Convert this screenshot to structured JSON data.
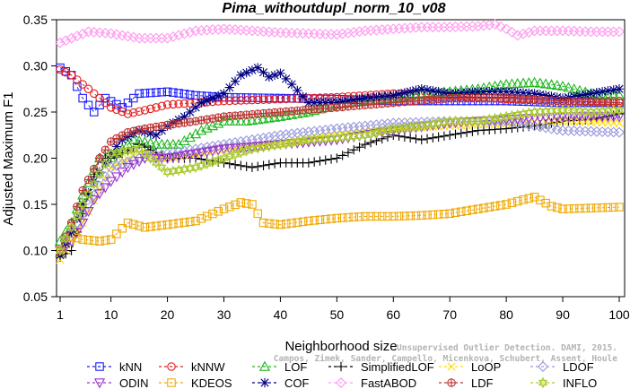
{
  "chart_data": {
    "type": "line",
    "title": "Pima_withoutdupl_norm_10_v08",
    "xlabel": "Neighborhood size",
    "ylabel": "Adjusted Maximum F1",
    "xlim": [
      1,
      100
    ],
    "ylim": [
      0.05,
      0.35
    ],
    "x_ticks": [
      1,
      10,
      20,
      30,
      40,
      50,
      60,
      70,
      80,
      90,
      100
    ],
    "y_ticks": [
      "0.05",
      "0.10",
      "0.15",
      "0.20",
      "0.25",
      "0.30",
      "0.35"
    ],
    "grid": false,
    "legend_position": "bottom",
    "credit": [
      "Campos, Zimek, Sander, Campello, Micenkova, Schubert, Assent, Houle",
      "Unsupervised Outlier Detection. DAMI, 2015."
    ],
    "series": [
      {
        "name": "kNN",
        "color": "#1a1aff",
        "marker": "square",
        "points": [
          [
            1,
            0.298
          ],
          [
            3,
            0.29
          ],
          [
            5,
            0.265
          ],
          [
            7,
            0.25
          ],
          [
            9,
            0.265
          ],
          [
            12,
            0.255
          ],
          [
            15,
            0.27
          ],
          [
            20,
            0.272
          ],
          [
            25,
            0.268
          ],
          [
            30,
            0.266
          ],
          [
            40,
            0.265
          ],
          [
            50,
            0.264
          ],
          [
            60,
            0.262
          ],
          [
            70,
            0.262
          ],
          [
            80,
            0.262
          ],
          [
            90,
            0.26
          ],
          [
            100,
            0.26
          ]
        ]
      },
      {
        "name": "kNNW",
        "color": "#e41a1c",
        "marker": "circle",
        "points": [
          [
            1,
            0.296
          ],
          [
            3,
            0.29
          ],
          [
            5,
            0.28
          ],
          [
            8,
            0.265
          ],
          [
            10,
            0.255
          ],
          [
            13,
            0.248
          ],
          [
            16,
            0.252
          ],
          [
            20,
            0.258
          ],
          [
            25,
            0.26
          ],
          [
            30,
            0.262
          ],
          [
            40,
            0.264
          ],
          [
            50,
            0.266
          ],
          [
            60,
            0.27
          ],
          [
            70,
            0.268
          ],
          [
            80,
            0.264
          ],
          [
            90,
            0.262
          ],
          [
            100,
            0.262
          ]
        ]
      },
      {
        "name": "LOF",
        "color": "#1db81d",
        "marker": "triangle-up",
        "points": [
          [
            1,
            0.11
          ],
          [
            3,
            0.13
          ],
          [
            5,
            0.16
          ],
          [
            8,
            0.2
          ],
          [
            10,
            0.2
          ],
          [
            14,
            0.22
          ],
          [
            18,
            0.215
          ],
          [
            22,
            0.215
          ],
          [
            26,
            0.23
          ],
          [
            30,
            0.24
          ],
          [
            34,
            0.24
          ],
          [
            40,
            0.245
          ],
          [
            45,
            0.25
          ],
          [
            50,
            0.258
          ],
          [
            55,
            0.262
          ],
          [
            60,
            0.265
          ],
          [
            65,
            0.27
          ],
          [
            70,
            0.272
          ],
          [
            75,
            0.275
          ],
          [
            80,
            0.28
          ],
          [
            85,
            0.282
          ],
          [
            90,
            0.278
          ],
          [
            95,
            0.27
          ],
          [
            100,
            0.268
          ]
        ]
      },
      {
        "name": "SimplifiedLOF",
        "color": "#000000",
        "marker": "plus",
        "points": [
          [
            1,
            0.093
          ],
          [
            3,
            0.1
          ],
          [
            5,
            0.14
          ],
          [
            8,
            0.2
          ],
          [
            10,
            0.2
          ],
          [
            12,
            0.205
          ],
          [
            15,
            0.215
          ],
          [
            20,
            0.2
          ],
          [
            25,
            0.2
          ],
          [
            30,
            0.195
          ],
          [
            35,
            0.19
          ],
          [
            40,
            0.195
          ],
          [
            45,
            0.195
          ],
          [
            50,
            0.2
          ],
          [
            55,
            0.215
          ],
          [
            60,
            0.225
          ],
          [
            65,
            0.22
          ],
          [
            70,
            0.225
          ],
          [
            75,
            0.23
          ],
          [
            80,
            0.232
          ],
          [
            85,
            0.235
          ],
          [
            90,
            0.24
          ],
          [
            95,
            0.242
          ],
          [
            100,
            0.248
          ]
        ]
      },
      {
        "name": "LoOP",
        "color": "#ffdd00",
        "marker": "cross",
        "points": [
          [
            1,
            0.09
          ],
          [
            5,
            0.13
          ],
          [
            10,
            0.19
          ],
          [
            15,
            0.205
          ],
          [
            20,
            0.2
          ],
          [
            25,
            0.205
          ],
          [
            30,
            0.21
          ],
          [
            40,
            0.215
          ],
          [
            50,
            0.225
          ],
          [
            60,
            0.232
          ],
          [
            70,
            0.235
          ],
          [
            80,
            0.238
          ],
          [
            90,
            0.24
          ],
          [
            100,
            0.238
          ]
        ]
      },
      {
        "name": "LDOF",
        "color": "#9999dd",
        "marker": "diamond",
        "points": [
          [
            1,
            0.1
          ],
          [
            5,
            0.14
          ],
          [
            10,
            0.19
          ],
          [
            15,
            0.2
          ],
          [
            20,
            0.205
          ],
          [
            30,
            0.215
          ],
          [
            40,
            0.225
          ],
          [
            50,
            0.232
          ],
          [
            60,
            0.238
          ],
          [
            70,
            0.24
          ],
          [
            80,
            0.24
          ],
          [
            85,
            0.235
          ],
          [
            90,
            0.23
          ],
          [
            100,
            0.228
          ]
        ]
      },
      {
        "name": "ODIN",
        "color": "#9933cc",
        "marker": "triangle-down",
        "points": [
          [
            1,
            0.1
          ],
          [
            3,
            0.11
          ],
          [
            5,
            0.13
          ],
          [
            7,
            0.155
          ],
          [
            10,
            0.175
          ],
          [
            13,
            0.19
          ],
          [
            16,
            0.2
          ],
          [
            20,
            0.2
          ],
          [
            25,
            0.205
          ],
          [
            30,
            0.21
          ],
          [
            40,
            0.215
          ],
          [
            50,
            0.22
          ],
          [
            60,
            0.23
          ],
          [
            70,
            0.238
          ],
          [
            80,
            0.242
          ],
          [
            90,
            0.245
          ],
          [
            100,
            0.245
          ]
        ]
      },
      {
        "name": "KDEOS",
        "color": "#f0a800",
        "marker": "square",
        "points": [
          [
            1,
            0.1
          ],
          [
            3,
            0.115
          ],
          [
            5,
            0.112
          ],
          [
            8,
            0.11
          ],
          [
            10,
            0.112
          ],
          [
            13,
            0.13
          ],
          [
            16,
            0.125
          ],
          [
            20,
            0.128
          ],
          [
            25,
            0.132
          ],
          [
            30,
            0.145
          ],
          [
            33,
            0.152
          ],
          [
            35,
            0.15
          ],
          [
            37,
            0.13
          ],
          [
            40,
            0.128
          ],
          [
            45,
            0.132
          ],
          [
            50,
            0.135
          ],
          [
            55,
            0.137
          ],
          [
            60,
            0.137
          ],
          [
            65,
            0.138
          ],
          [
            70,
            0.14
          ],
          [
            75,
            0.145
          ],
          [
            80,
            0.15
          ],
          [
            83,
            0.155
          ],
          [
            85,
            0.158
          ],
          [
            88,
            0.148
          ],
          [
            90,
            0.145
          ],
          [
            95,
            0.146
          ],
          [
            100,
            0.147
          ]
        ]
      },
      {
        "name": "COF",
        "color": "#000080",
        "marker": "star",
        "points": [
          [
            1,
            0.095
          ],
          [
            3,
            0.12
          ],
          [
            5,
            0.15
          ],
          [
            7,
            0.175
          ],
          [
            10,
            0.205
          ],
          [
            12,
            0.22
          ],
          [
            15,
            0.23
          ],
          [
            18,
            0.225
          ],
          [
            20,
            0.235
          ],
          [
            23,
            0.245
          ],
          [
            26,
            0.26
          ],
          [
            30,
            0.27
          ],
          [
            33,
            0.29
          ],
          [
            36,
            0.298
          ],
          [
            38,
            0.288
          ],
          [
            40,
            0.292
          ],
          [
            42,
            0.28
          ],
          [
            45,
            0.26
          ],
          [
            50,
            0.26
          ],
          [
            55,
            0.265
          ],
          [
            60,
            0.268
          ],
          [
            65,
            0.275
          ],
          [
            70,
            0.27
          ],
          [
            75,
            0.272
          ],
          [
            80,
            0.272
          ],
          [
            85,
            0.27
          ],
          [
            90,
            0.265
          ],
          [
            95,
            0.27
          ],
          [
            100,
            0.275
          ]
        ]
      },
      {
        "name": "FastABOD",
        "color": "#ff99ee",
        "marker": "diamond",
        "points": [
          [
            1,
            0.325
          ],
          [
            3,
            0.33
          ],
          [
            6,
            0.337
          ],
          [
            10,
            0.335
          ],
          [
            15,
            0.33
          ],
          [
            20,
            0.33
          ],
          [
            25,
            0.338
          ],
          [
            30,
            0.34
          ],
          [
            35,
            0.338
          ],
          [
            40,
            0.336
          ],
          [
            45,
            0.335
          ],
          [
            50,
            0.334
          ],
          [
            55,
            0.338
          ],
          [
            60,
            0.34
          ],
          [
            65,
            0.342
          ],
          [
            70,
            0.342
          ],
          [
            75,
            0.343
          ],
          [
            78,
            0.345
          ],
          [
            80,
            0.34
          ],
          [
            82,
            0.333
          ],
          [
            85,
            0.338
          ],
          [
            90,
            0.338
          ],
          [
            95,
            0.337
          ],
          [
            100,
            0.337
          ]
        ]
      },
      {
        "name": "LDF",
        "color": "#bb3333",
        "marker": "circle-plus",
        "points": [
          [
            1,
            0.1
          ],
          [
            3,
            0.13
          ],
          [
            5,
            0.165
          ],
          [
            8,
            0.2
          ],
          [
            10,
            0.218
          ],
          [
            13,
            0.228
          ],
          [
            16,
            0.232
          ],
          [
            20,
            0.236
          ],
          [
            25,
            0.24
          ],
          [
            30,
            0.245
          ],
          [
            40,
            0.25
          ],
          [
            50,
            0.255
          ],
          [
            60,
            0.26
          ],
          [
            70,
            0.265
          ],
          [
            80,
            0.265
          ],
          [
            90,
            0.262
          ],
          [
            100,
            0.26
          ]
        ]
      },
      {
        "name": "INFLO",
        "color": "#aacc33",
        "marker": "star6",
        "points": [
          [
            1,
            0.1
          ],
          [
            5,
            0.15
          ],
          [
            10,
            0.205
          ],
          [
            15,
            0.21
          ],
          [
            20,
            0.185
          ],
          [
            25,
            0.19
          ],
          [
            30,
            0.2
          ],
          [
            35,
            0.21
          ],
          [
            40,
            0.215
          ],
          [
            45,
            0.22
          ],
          [
            50,
            0.222
          ],
          [
            55,
            0.225
          ],
          [
            60,
            0.232
          ],
          [
            65,
            0.235
          ],
          [
            70,
            0.24
          ],
          [
            75,
            0.24
          ],
          [
            80,
            0.245
          ],
          [
            85,
            0.25
          ],
          [
            90,
            0.252
          ],
          [
            95,
            0.25
          ],
          [
            100,
            0.252
          ]
        ]
      }
    ],
    "legend_rows": [
      [
        "kNN",
        "kNNW",
        "LOF",
        "SimplifiedLOF",
        "LoOP",
        "LDOF"
      ],
      [
        "ODIN",
        "KDEOS",
        "COF",
        "FastABOD",
        "LDF",
        "INFLO"
      ]
    ]
  }
}
